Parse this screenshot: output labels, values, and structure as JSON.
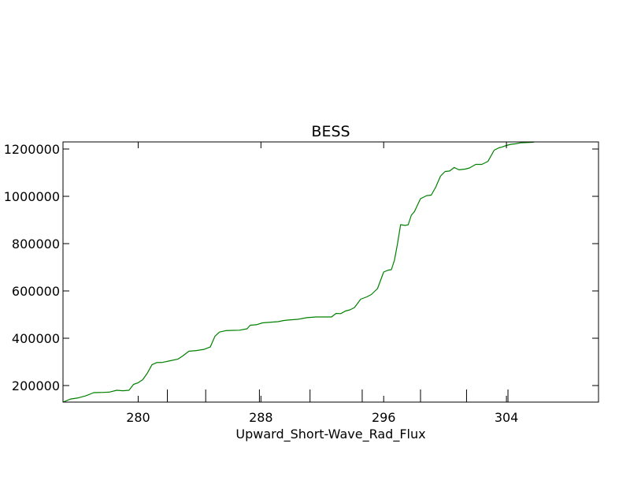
{
  "chart_data": {
    "type": "line",
    "title": "BESS",
    "xlabel": "Upward_Short-Wave_Rad_Flux",
    "ylabel": "",
    "xlim": [
      275.1,
      310.0
    ],
    "ylim": [
      130000,
      1230000
    ],
    "grid": false,
    "x_ticks": [
      280,
      288,
      296,
      304
    ],
    "x_tick_labels": [
      "280",
      "288",
      "296",
      "304"
    ],
    "x_minor_ticks": [
      281.9,
      284.4,
      287.9,
      291.2,
      294.6,
      298.4,
      301.4,
      304.1
    ],
    "y_ticks": [
      200000,
      400000,
      600000,
      800000,
      1000000,
      1200000
    ],
    "y_tick_labels": [
      "200000",
      "400000",
      "600000",
      "800000",
      "1000000",
      "1200000"
    ],
    "series": [
      {
        "color": "#008000",
        "x": [
          275.1,
          275.6,
          276.1,
          276.6,
          277.1,
          277.7,
          278.1,
          278.6,
          279.0,
          279.4,
          279.7,
          280.0,
          280.3,
          280.6,
          280.9,
          281.2,
          281.6,
          282.1,
          282.6,
          282.9,
          283.3,
          283.8,
          284.3,
          284.7,
          285.0,
          285.3,
          285.7,
          286.0,
          286.6,
          287.1,
          287.3,
          287.7,
          288.1,
          288.5,
          289.1,
          289.5,
          289.8,
          290.4,
          291.0,
          291.6,
          292.0,
          292.3,
          292.6,
          292.9,
          293.2,
          293.5,
          293.8,
          294.1,
          294.5,
          294.9,
          295.2,
          295.6,
          296.0,
          296.3,
          296.5,
          296.7,
          296.9,
          297.1,
          297.4,
          297.6,
          297.8,
          298.0,
          298.4,
          298.8,
          299.1,
          299.4,
          299.7,
          300.0,
          300.3,
          300.6,
          300.9,
          301.3,
          301.6,
          302.0,
          302.4,
          302.8,
          303.2,
          303.5,
          303.7,
          304.0,
          304.3,
          304.6,
          304.9,
          305.2,
          305.5,
          305.8
        ],
        "y": [
          130000,
          143000,
          148000,
          157000,
          170000,
          171000,
          172000,
          180000,
          178000,
          180000,
          205000,
          212000,
          225000,
          253000,
          288000,
          297000,
          298000,
          305000,
          312000,
          325000,
          345000,
          348000,
          353000,
          363000,
          408000,
          426000,
          432000,
          433000,
          434000,
          440000,
          455000,
          457000,
          465000,
          467000,
          470000,
          475000,
          477000,
          480000,
          487000,
          490000,
          490000,
          490000,
          490000,
          505000,
          504000,
          515000,
          520000,
          530000,
          565000,
          575000,
          585000,
          610000,
          680000,
          688000,
          690000,
          730000,
          800000,
          880000,
          877000,
          880000,
          920000,
          935000,
          990000,
          1003000,
          1005000,
          1040000,
          1085000,
          1105000,
          1107000,
          1122000,
          1112000,
          1115000,
          1120000,
          1135000,
          1135000,
          1148000,
          1195000,
          1205000,
          1208000,
          1215000,
          1220000,
          1222000,
          1226000,
          1227000,
          1228000,
          1229000
        ]
      }
    ]
  }
}
